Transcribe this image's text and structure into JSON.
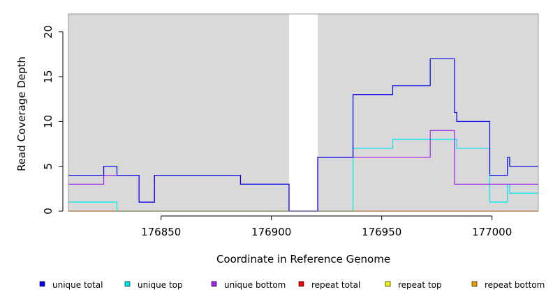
{
  "chart_data": {
    "type": "line",
    "title": "",
    "xlabel": "Coordinate in Reference Genome",
    "ylabel": "Read Coverage Depth",
    "xlim": [
      176808,
      177021
    ],
    "ylim": [
      0,
      22
    ],
    "x_ticks": [
      176850,
      176900,
      176950,
      177000
    ],
    "y_ticks": [
      0,
      5,
      10,
      15,
      20
    ],
    "shaded_regions": [
      [
        176808,
        176908
      ],
      [
        176921,
        177021
      ]
    ],
    "shade_color": "#d9d9d9",
    "legend_position": "bottom",
    "series": [
      {
        "name": "unique total",
        "color": "#0000ee",
        "steps": [
          [
            176808,
            4
          ],
          [
            176824,
            5
          ],
          [
            176830,
            4
          ],
          [
            176840,
            1
          ],
          [
            176847,
            4
          ],
          [
            176886,
            3
          ],
          [
            176908,
            0
          ],
          [
            176921,
            6
          ],
          [
            176937,
            13
          ],
          [
            176955,
            14
          ],
          [
            176972,
            17
          ],
          [
            176983,
            11
          ],
          [
            176984,
            10
          ],
          [
            176999,
            4
          ],
          [
            177007,
            6
          ],
          [
            177008,
            5
          ],
          [
            177021,
            5
          ]
        ]
      },
      {
        "name": "unique top",
        "color": "#00e5ee",
        "steps": [
          [
            176808,
            1
          ],
          [
            176830,
            0
          ],
          [
            176937,
            7
          ],
          [
            176955,
            8
          ],
          [
            176984,
            7
          ],
          [
            176999,
            1
          ],
          [
            177007,
            3
          ],
          [
            177008,
            2
          ],
          [
            177021,
            2
          ]
        ]
      },
      {
        "name": "unique bottom",
        "color": "#a020f0",
        "steps": [
          [
            176808,
            3
          ],
          [
            176824,
            4
          ],
          [
            176830,
            4
          ],
          [
            176840,
            1
          ],
          [
            176847,
            4
          ],
          [
            176886,
            3
          ],
          [
            176908,
            0
          ],
          [
            176921,
            6
          ],
          [
            176972,
            9
          ],
          [
            176983,
            3
          ],
          [
            177021,
            3
          ]
        ]
      },
      {
        "name": "repeat total",
        "color": "#ee0000",
        "steps": [
          [
            176808,
            0
          ],
          [
            177021,
            0
          ]
        ]
      },
      {
        "name": "repeat top",
        "color": "#eeee00",
        "steps": [
          [
            176808,
            0
          ],
          [
            177021,
            0
          ]
        ]
      },
      {
        "name": "repeat bottom",
        "color": "#ee9a00",
        "steps": [
          [
            176808,
            0
          ],
          [
            177021,
            0
          ]
        ]
      }
    ]
  }
}
